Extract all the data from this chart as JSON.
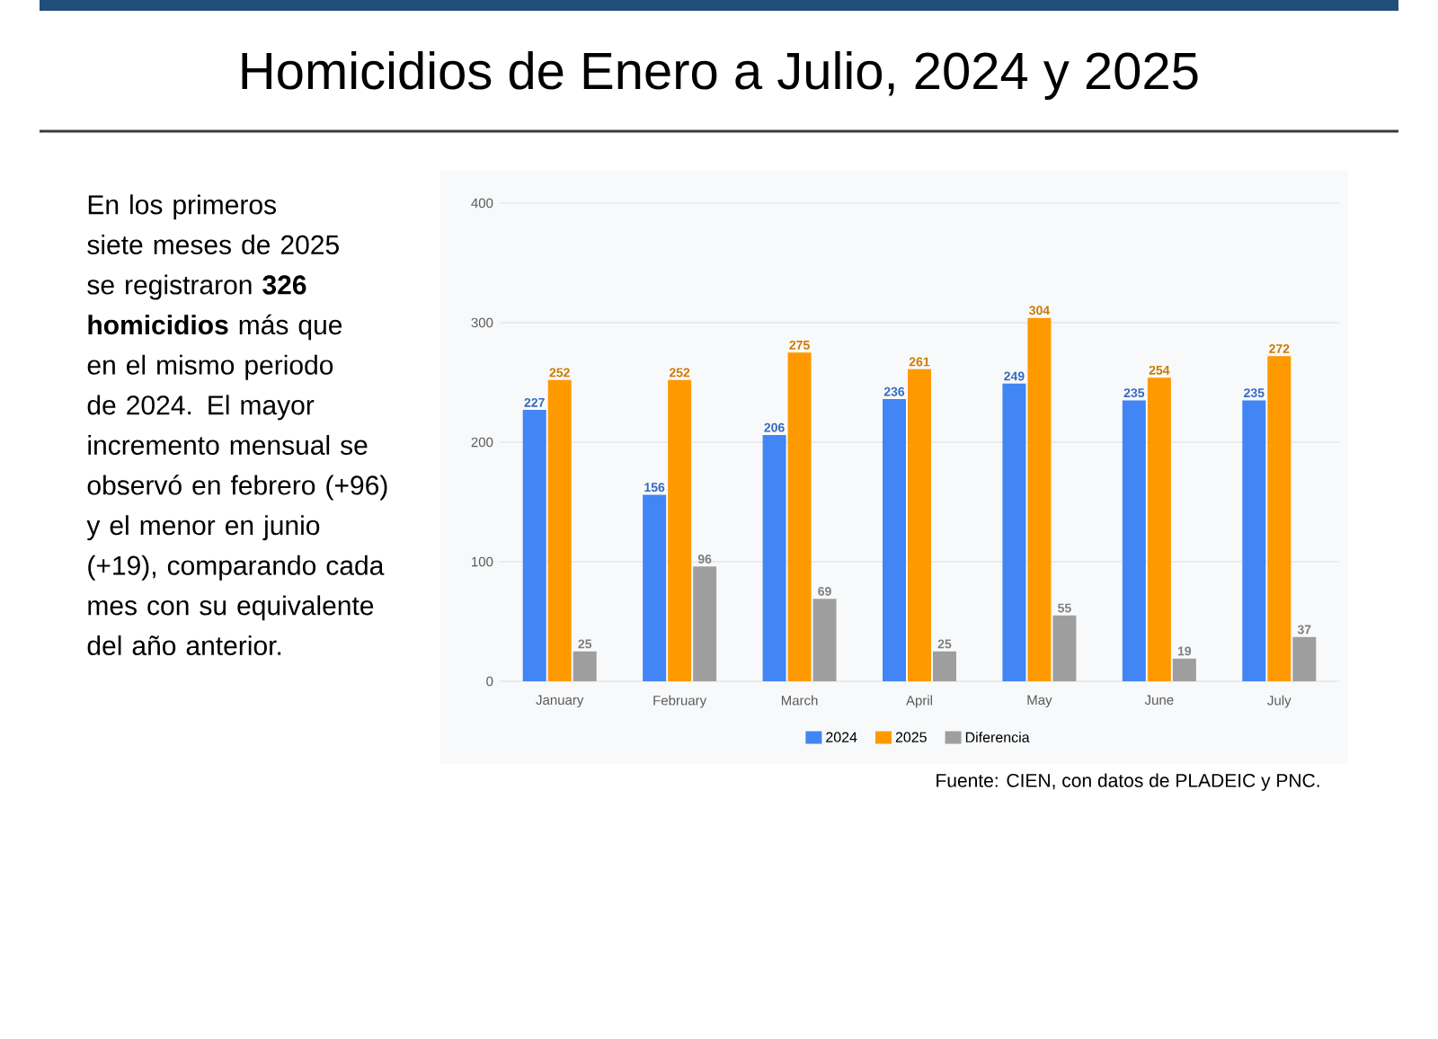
{
  "chart_data": {
    "type": "bar",
    "title": "Homicidios de Enero a Julio, 2024 y 2025",
    "categories": [
      "January",
      "February",
      "March",
      "April",
      "May",
      "June",
      "July"
    ],
    "series": [
      {
        "name": "2024",
        "color": "#4285f4",
        "values": [
          227,
          156,
          206,
          236,
          249,
          235,
          235
        ]
      },
      {
        "name": "2025",
        "color": "#ff9900",
        "values": [
          252,
          252,
          275,
          261,
          304,
          254,
          272
        ]
      },
      {
        "name": "Diferencia",
        "color": "#9e9e9e",
        "values": [
          25,
          96,
          69,
          25,
          55,
          19,
          37
        ]
      }
    ],
    "ylim": [
      0,
      400
    ],
    "yticks": [
      0,
      100,
      200,
      300,
      400
    ],
    "grid": "y",
    "legend": "bottom",
    "data_labels": true,
    "annotations": [
      "En los primeros siete meses de 2025 se registraron **326 homicidios** más que en el mismo periodo de 2024. El mayor incremento mensual se observó en febrero (+96) y el menor en junio (+19), comparando cada mes con su equivalente del año anterior.",
      "Fuente: CIEN, con datos de PLADEIC y PNC."
    ]
  }
}
